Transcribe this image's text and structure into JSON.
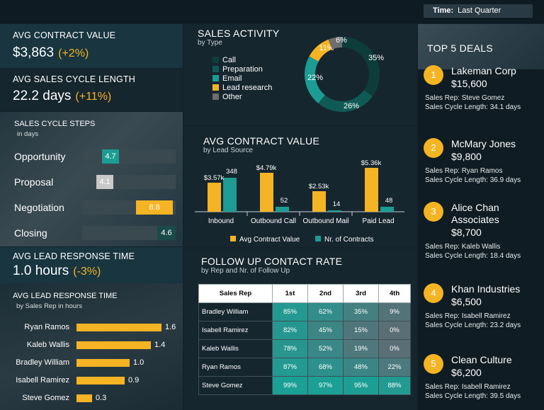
{
  "header": {
    "time_label": "Time:",
    "time_value": "Last Quarter"
  },
  "kpis": {
    "contract": {
      "label": "AVG CONTRACT VALUE",
      "value": "$3,863",
      "change": "(+2%)"
    },
    "cycle": {
      "label": "AVG SALES CYCLE LENGTH",
      "value": "22.2 days",
      "change": "(+11%)"
    },
    "response": {
      "label": "AVG LEAD RESPONSE TIME",
      "value": "1.0 hours",
      "change": "(-3%)"
    }
  },
  "cycle_steps": {
    "title": "SALES CYCLE STEPS",
    "subtitle": "in days",
    "steps": [
      {
        "label": "Opportunity",
        "value": "4.7",
        "color": "#1c9c93"
      },
      {
        "label": "Proposal",
        "value": "4.1",
        "color": "#c9c9c9"
      },
      {
        "label": "Negotiation",
        "value": "8.8",
        "color": "#f5b423"
      },
      {
        "label": "Closing",
        "value": "4.6",
        "color": "#1a4a4a"
      }
    ]
  },
  "response_by_rep": {
    "title": "AVG LEAD RESPONSE TIME",
    "subtitle": "by Sales Rep in hours",
    "reps": [
      {
        "name": "Ryan Ramos",
        "value": "1.6"
      },
      {
        "name": "Kaleb Wallis",
        "value": "1.4"
      },
      {
        "name": "Bradley William",
        "value": "1.0"
      },
      {
        "name": "Isabell Ramirez",
        "value": "0.9"
      },
      {
        "name": "Steve Gomez",
        "value": "0.3"
      }
    ]
  },
  "sales_activity": {
    "title": "SALES ACTIVITY",
    "subtitle": "by Type",
    "legend": [
      {
        "label": "Call",
        "color": "#0d3d3a"
      },
      {
        "label": "Preparation",
        "color": "#105a55"
      },
      {
        "label": "Email",
        "color": "#1c9c93"
      },
      {
        "label": "Lead research",
        "color": "#f5b423"
      },
      {
        "label": "Other",
        "color": "#6d6d6d"
      }
    ],
    "slices": [
      {
        "label": "35%",
        "value": 35,
        "color": "#0d3d3a"
      },
      {
        "label": "26%",
        "value": 26,
        "color": "#105a55"
      },
      {
        "label": "22%",
        "value": 22,
        "color": "#1c9c93"
      },
      {
        "label": "11%",
        "value": 11,
        "color": "#f5b423"
      },
      {
        "label": "6%",
        "value": 6,
        "color": "#6d6d6d"
      }
    ]
  },
  "contract_by_source": {
    "title": "AVG CONTRACT VALUE",
    "subtitle": "by Lead Source",
    "legend_value": "Avg Contract Value",
    "legend_count": "Nr. of Contracts",
    "color_value": "#f5b423",
    "color_count": "#1c9c93",
    "groups": [
      {
        "name": "Inbound",
        "value": 3570,
        "value_label": "$3.57k",
        "count": 348,
        "count_label": "348"
      },
      {
        "name": "Outbound Call",
        "value": 4790,
        "value_label": "$4.79k",
        "count": 52,
        "count_label": "52"
      },
      {
        "name": "Outbound Mail",
        "value": 2530,
        "value_label": "$2.53k",
        "count": 14,
        "count_label": "14"
      },
      {
        "name": "Paid Lead",
        "value": 5360,
        "value_label": "$5.36k",
        "count": 48,
        "count_label": "48"
      }
    ]
  },
  "follow_up": {
    "title": "FOLLOW UP CONTACT RATE",
    "subtitle": "by Rep and Nr. of Follow Up",
    "columns": [
      "Sales Rep",
      "1st",
      "2nd",
      "3rd",
      "4th"
    ],
    "rows": [
      {
        "rep": "Bradley William",
        "cells": [
          "85%",
          "62%",
          "35%",
          "9%"
        ]
      },
      {
        "rep": "Isabell Ramirez",
        "cells": [
          "82%",
          "45%",
          "15%",
          "0%"
        ]
      },
      {
        "rep": "Kaleb Wallis",
        "cells": [
          "78%",
          "52%",
          "19%",
          "0%"
        ]
      },
      {
        "rep": "Ryan Ramos",
        "cells": [
          "87%",
          "68%",
          "48%",
          "22%"
        ]
      },
      {
        "rep": "Steve Gomez",
        "cells": [
          "99%",
          "97%",
          "95%",
          "88%"
        ]
      }
    ]
  },
  "deals": {
    "title": "TOP 5 DEALS",
    "items": [
      {
        "num": "1",
        "name": "Lakeman Corp",
        "value": "$15,600",
        "rep": "Sales Rep: Steve Gomez",
        "cycle": "Sales Cycle Length: 34.1 days"
      },
      {
        "num": "2",
        "name": "McMary Jones",
        "value": "$9,800",
        "rep": "Sales Rep: Ryan Ramos",
        "cycle": "Sales Cycle Length: 36.9 days"
      },
      {
        "num": "3",
        "name": "Alice Chan Associates",
        "value": "$8,700",
        "rep": "Sales Rep: Kaleb Wallis",
        "cycle": "Sales Cycle Length: 18.4 days"
      },
      {
        "num": "4",
        "name": "Khan Industries",
        "value": "$6,500",
        "rep": "Sales Rep: Isabell Ramirez",
        "cycle": "Sales Cycle Length: 23.2 days"
      },
      {
        "num": "5",
        "name": "Clean Culture",
        "value": "$6,200",
        "rep": "Sales Rep: Isabell Ramirez",
        "cycle": "Sales Cycle Length: 39.5 days"
      }
    ]
  },
  "chart_data": [
    {
      "type": "bar",
      "categories": [
        "Opportunity",
        "Proposal",
        "Negotiation",
        "Closing"
      ],
      "values": [
        4.7,
        4.1,
        8.8,
        4.6
      ],
      "title": "SALES CYCLE STEPS"
    },
    {
      "type": "bar",
      "categories": [
        "Ryan Ramos",
        "Kaleb Wallis",
        "Bradley William",
        "Isabell Ramirez",
        "Steve Gomez"
      ],
      "values": [
        1.6,
        1.4,
        1.0,
        0.9,
        0.3
      ],
      "title": "AVG LEAD RESPONSE TIME"
    },
    {
      "type": "pie",
      "categories": [
        "Call",
        "Preparation",
        "Email",
        "Lead research",
        "Other"
      ],
      "values": [
        35,
        26,
        22,
        11,
        6
      ],
      "title": "SALES ACTIVITY"
    },
    {
      "type": "bar",
      "categories": [
        "Inbound",
        "Outbound Call",
        "Outbound Mail",
        "Paid Lead"
      ],
      "series": [
        {
          "name": "Avg Contract Value",
          "values": [
            3570,
            4790,
            2530,
            5360
          ]
        },
        {
          "name": "Nr. of Contracts",
          "values": [
            348,
            52,
            14,
            48
          ]
        }
      ],
      "title": "AVG CONTRACT VALUE"
    },
    {
      "type": "heatmap",
      "categories": [
        "1st",
        "2nd",
        "3rd",
        "4th"
      ],
      "rows": [
        "Bradley William",
        "Isabell Ramirez",
        "Kaleb Wallis",
        "Ryan Ramos",
        "Steve Gomez"
      ],
      "values": [
        [
          85,
          62,
          35,
          9
        ],
        [
          82,
          45,
          15,
          0
        ],
        [
          78,
          52,
          19,
          0
        ],
        [
          87,
          68,
          48,
          22
        ],
        [
          99,
          97,
          95,
          88
        ]
      ],
      "title": "FOLLOW UP CONTACT RATE"
    }
  ]
}
